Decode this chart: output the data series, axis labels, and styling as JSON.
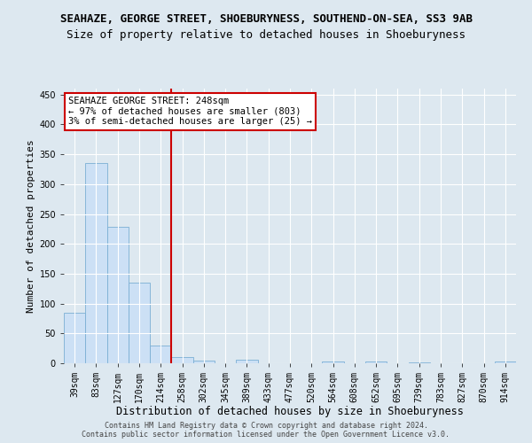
{
  "title": "SEAHAZE, GEORGE STREET, SHOEBURYNESS, SOUTHEND-ON-SEA, SS3 9AB",
  "subtitle": "Size of property relative to detached houses in Shoeburyness",
  "xlabel": "Distribution of detached houses by size in Shoeburyness",
  "ylabel": "Number of detached properties",
  "footer": "Contains HM Land Registry data © Crown copyright and database right 2024.\nContains public sector information licensed under the Open Government Licence v3.0.",
  "categories": [
    "39sqm",
    "83sqm",
    "127sqm",
    "170sqm",
    "214sqm",
    "258sqm",
    "302sqm",
    "345sqm",
    "389sqm",
    "433sqm",
    "477sqm",
    "520sqm",
    "564sqm",
    "608sqm",
    "652sqm",
    "695sqm",
    "739sqm",
    "783sqm",
    "827sqm",
    "870sqm",
    "914sqm"
  ],
  "values": [
    85,
    335,
    228,
    135,
    30,
    10,
    5,
    0,
    6,
    0,
    0,
    0,
    3,
    0,
    3,
    0,
    2,
    0,
    0,
    0,
    3
  ],
  "bar_color": "#cce0f5",
  "bar_edge_color": "#7bafd4",
  "vline_x_index": 5,
  "vline_color": "#cc0000",
  "annotation_text": "SEAHAZE GEORGE STREET: 248sqm\n← 97% of detached houses are smaller (803)\n3% of semi-detached houses are larger (25) →",
  "annotation_box_color": "#ffffff",
  "annotation_box_edge": "#cc0000",
  "ylim": [
    0,
    460
  ],
  "yticks": [
    0,
    50,
    100,
    150,
    200,
    250,
    300,
    350,
    400,
    450
  ],
  "background_color": "#dde8f0",
  "plot_bg_color": "#dde8f0",
  "title_fontsize": 9,
  "subtitle_fontsize": 9,
  "xlabel_fontsize": 8.5,
  "ylabel_fontsize": 8,
  "footer_fontsize": 6,
  "tick_fontsize": 7,
  "annot_fontsize": 7.5
}
